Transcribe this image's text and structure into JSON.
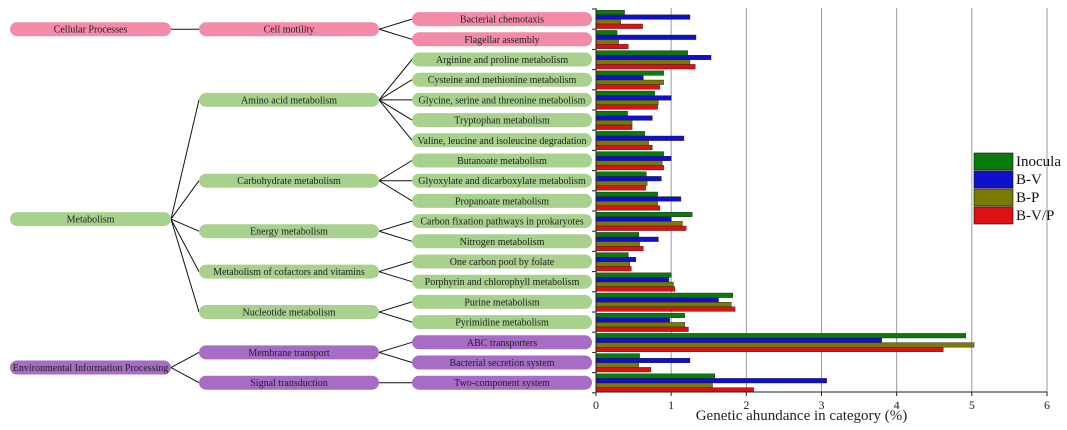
{
  "chart_data": {
    "type": "bar",
    "orientation": "horizontal",
    "xlabel": "Genetic ahundance in category (%)",
    "xlim": [
      0,
      6
    ],
    "xticks": [
      "0",
      "1",
      "2",
      "3",
      "4",
      "5",
      "6"
    ],
    "grid": "vertical",
    "legend_position": "right",
    "series": [
      {
        "name": "Inocula",
        "color": "#0a7a0a"
      },
      {
        "name": "B-V",
        "color": "#1010cc"
      },
      {
        "name": "B-P",
        "color": "#7a7a00"
      },
      {
        "name": "B-V/P",
        "color": "#dd1111"
      }
    ],
    "categories": [
      "Bacterial chemotaxis",
      "Flagellar assembly",
      "Arginine and proline metabolism",
      "Cysteine and methionine metabolism",
      "Glycine, serine and threonine metabolism",
      "Tryptophan metabolism",
      "Valine, leucine and isoleucine degradation",
      "Butanoate metabolism",
      "Glyoxylate and dicarboxylate metabolism",
      "Propanoate metabolism",
      "Carbon fixation pathways in prokaryotes",
      "Nitrogen metabolism",
      "One carbon pool by folate",
      "Porphyrin and chlorophyll metabolism",
      "Purine metabolism",
      "Pyrimidine metabolism",
      "ABC transporters",
      "Bacterial secretion system",
      "Two-component system"
    ],
    "values": [
      [
        0.38,
        1.25,
        0.33,
        0.62
      ],
      [
        0.28,
        1.33,
        0.3,
        0.43
      ],
      [
        1.22,
        1.53,
        1.25,
        1.32
      ],
      [
        0.9,
        0.63,
        0.9,
        0.85
      ],
      [
        0.78,
        1.0,
        0.83,
        0.82
      ],
      [
        0.42,
        0.75,
        0.48,
        0.48
      ],
      [
        0.65,
        1.17,
        0.7,
        0.75
      ],
      [
        0.9,
        1.0,
        0.88,
        0.9
      ],
      [
        0.67,
        0.87,
        0.68,
        0.66
      ],
      [
        0.82,
        1.13,
        0.82,
        0.85
      ],
      [
        1.28,
        1.0,
        1.15,
        1.2
      ],
      [
        0.57,
        0.83,
        0.58,
        0.63
      ],
      [
        0.43,
        0.53,
        0.45,
        0.47
      ],
      [
        1.0,
        0.97,
        1.03,
        1.05
      ],
      [
        1.82,
        1.63,
        1.8,
        1.85
      ],
      [
        1.18,
        0.98,
        1.18,
        1.23
      ],
      [
        4.92,
        3.8,
        5.03,
        4.62
      ],
      [
        0.58,
        1.25,
        0.57,
        0.73
      ],
      [
        1.58,
        3.07,
        1.55,
        2.1
      ]
    ]
  },
  "hierarchy": {
    "level1": [
      {
        "label": "Cellular Processes",
        "color": "pink",
        "level2": [
          0
        ]
      },
      {
        "label": "Metabolism",
        "color": "green",
        "level2": [
          1,
          2,
          3,
          4,
          5
        ]
      },
      {
        "label": "Environmental Information Processing",
        "color": "purple",
        "level2": [
          6,
          7
        ]
      }
    ],
    "level2": [
      {
        "label": "Cell motility",
        "color": "pink",
        "categories": [
          0,
          1
        ]
      },
      {
        "label": "Amino acid metabolism",
        "color": "green",
        "categories": [
          2,
          3,
          4,
          5,
          6
        ]
      },
      {
        "label": "Carbohydrate metabolism",
        "color": "green",
        "categories": [
          7,
          8,
          9
        ]
      },
      {
        "label": "Energy metabolism",
        "color": "green",
        "categories": [
          10,
          11
        ]
      },
      {
        "label": "Metabolism of cofactors and vitamins",
        "color": "green",
        "categories": [
          12,
          13
        ]
      },
      {
        "label": "Nucleotide metabolism",
        "color": "green",
        "categories": [
          14,
          15
        ]
      },
      {
        "label": "Membrane transport",
        "color": "purple",
        "categories": [
          16,
          17
        ]
      },
      {
        "label": "Signal transduction",
        "color": "purple",
        "categories": [
          18
        ]
      }
    ],
    "palette": {
      "pink": "#f28aa8",
      "green": "#a9d18e",
      "purple": "#a66cc6"
    }
  }
}
